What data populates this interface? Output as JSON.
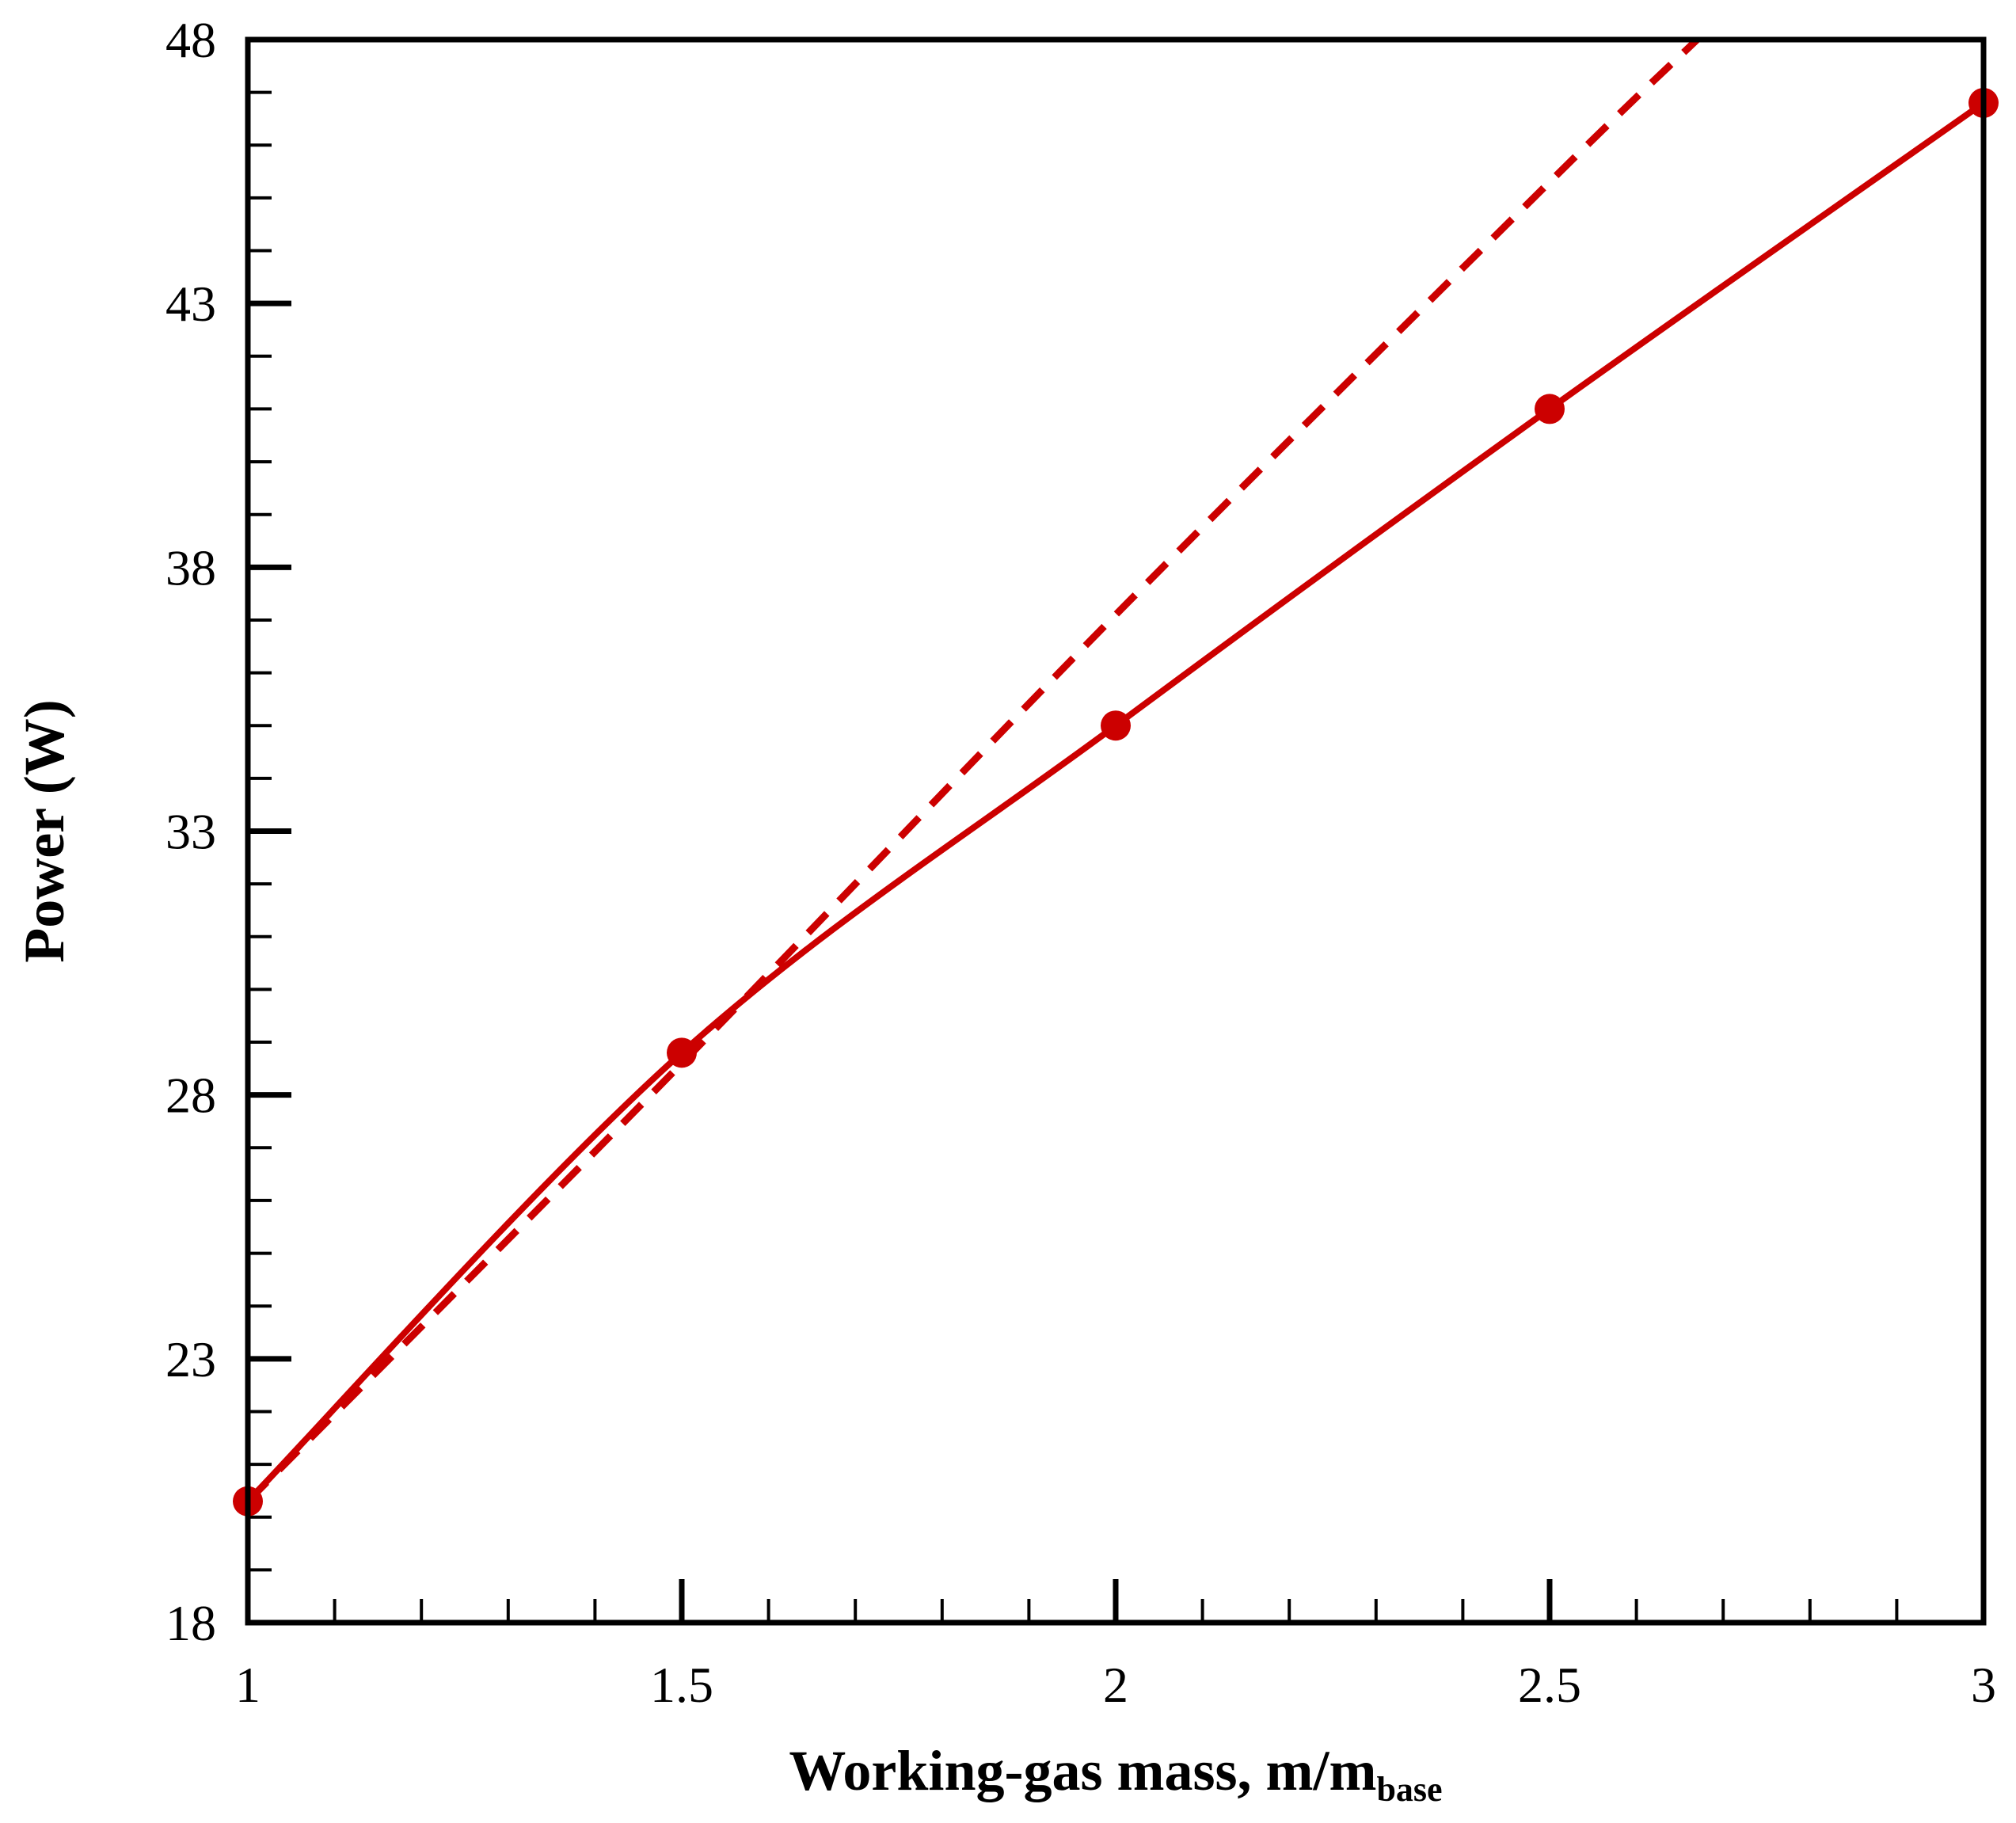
{
  "chart_data": {
    "type": "line",
    "title": "",
    "xlabel": "Working-gas mass, m/m",
    "xlabel_subscript": "base",
    "ylabel": "Power (W)",
    "xlim": [
      1,
      3
    ],
    "ylim": [
      18,
      48
    ],
    "x_major_ticks": [
      1,
      1.5,
      2,
      2.5,
      3
    ],
    "x_tick_labels": [
      "1",
      "1.5",
      "2",
      "2.5",
      "3"
    ],
    "x_minor_step": 0.1,
    "y_major_ticks": [
      18,
      23,
      28,
      33,
      38,
      43,
      48
    ],
    "y_tick_labels": [
      "18",
      "23",
      "28",
      "33",
      "38",
      "43",
      "48"
    ],
    "y_minor_step": 1,
    "grid": false,
    "legend": "none",
    "colors": {
      "series": "#cc0000",
      "frame": "#000000"
    },
    "series": [
      {
        "style": "solid-with-markers",
        "x": [
          1,
          1.5,
          2,
          2.5,
          3
        ],
        "y": [
          20.3,
          28.8,
          35.0,
          41.0,
          46.8
        ]
      },
      {
        "style": "dashed",
        "x": [
          1,
          1.5,
          2,
          2.5,
          2.67
        ],
        "y": [
          20.3,
          28.6,
          37.1,
          45.3,
          48.0
        ]
      }
    ]
  }
}
